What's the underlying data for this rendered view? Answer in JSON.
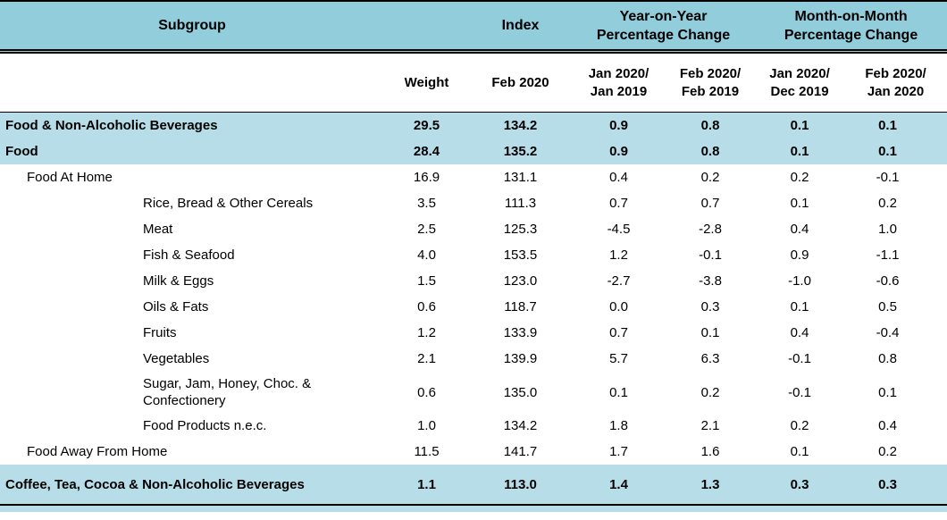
{
  "header": {
    "subgroup": "Subgroup",
    "index": "Index",
    "yoy_change": "Year-on-Year\nPercentage Change",
    "mom_change": "Month-on-Month\nPercentage Change",
    "weight": "Weight",
    "index_period": "Feb 2020",
    "yoy_periods": [
      "Jan 2020/\nJan 2019",
      "Feb 2020/\nFeb 2019"
    ],
    "mom_periods": [
      "Jan 2020/\nDec 2019",
      "Feb 2020/\nJan 2020"
    ]
  },
  "colors": {
    "header_bg": "#92CDDC",
    "highlight_bg": "#B7DEE8",
    "rule": "#000000"
  },
  "rows": [
    {
      "subgroup": "Food & Non-Alcoholic Beverages",
      "indent": 0,
      "highlight": true,
      "weight": "29.5",
      "index": "134.2",
      "yoy_jan": "0.9",
      "yoy_feb": "0.8",
      "mom_jan": "0.1",
      "mom_feb": "0.1"
    },
    {
      "subgroup": "Food",
      "indent": 0,
      "highlight": true,
      "weight": "28.4",
      "index": "135.2",
      "yoy_jan": "0.9",
      "yoy_feb": "0.8",
      "mom_jan": "0.1",
      "mom_feb": "0.1"
    },
    {
      "subgroup": "Food At Home",
      "indent": 1,
      "highlight": false,
      "weight": "16.9",
      "index": "131.1",
      "yoy_jan": "0.4",
      "yoy_feb": "0.2",
      "mom_jan": "0.2",
      "mom_feb": "-0.1"
    },
    {
      "subgroup": "Rice, Bread & Other Cereals",
      "indent": 2,
      "highlight": false,
      "weight": "3.5",
      "index": "111.3",
      "yoy_jan": "0.7",
      "yoy_feb": "0.7",
      "mom_jan": "0.1",
      "mom_feb": "0.2"
    },
    {
      "subgroup": "Meat",
      "indent": 2,
      "highlight": false,
      "weight": "2.5",
      "index": "125.3",
      "yoy_jan": "-4.5",
      "yoy_feb": "-2.8",
      "mom_jan": "0.4",
      "mom_feb": "1.0"
    },
    {
      "subgroup": "Fish & Seafood",
      "indent": 2,
      "highlight": false,
      "weight": "4.0",
      "index": "153.5",
      "yoy_jan": "1.2",
      "yoy_feb": "-0.1",
      "mom_jan": "0.9",
      "mom_feb": "-1.1"
    },
    {
      "subgroup": "Milk & Eggs",
      "indent": 2,
      "highlight": false,
      "weight": "1.5",
      "index": "123.0",
      "yoy_jan": "-2.7",
      "yoy_feb": "-3.8",
      "mom_jan": "-1.0",
      "mom_feb": "-0.6"
    },
    {
      "subgroup": "Oils & Fats",
      "indent": 2,
      "highlight": false,
      "weight": "0.6",
      "index": "118.7",
      "yoy_jan": "0.0",
      "yoy_feb": "0.3",
      "mom_jan": "0.1",
      "mom_feb": "0.5"
    },
    {
      "subgroup": "Fruits",
      "indent": 2,
      "highlight": false,
      "weight": "1.2",
      "index": "133.9",
      "yoy_jan": "0.7",
      "yoy_feb": "0.1",
      "mom_jan": "0.4",
      "mom_feb": "-0.4"
    },
    {
      "subgroup": "Vegetables",
      "indent": 2,
      "highlight": false,
      "weight": "2.1",
      "index": "139.9",
      "yoy_jan": "5.7",
      "yoy_feb": "6.3",
      "mom_jan": "-0.1",
      "mom_feb": "0.8"
    },
    {
      "subgroup": "Sugar, Jam, Honey, Choc. & Confectionery",
      "indent": 2,
      "highlight": false,
      "weight": "0.6",
      "index": "135.0",
      "yoy_jan": "0.1",
      "yoy_feb": "0.2",
      "mom_jan": "-0.1",
      "mom_feb": "0.1"
    },
    {
      "subgroup": "Food Products n.e.c.",
      "indent": 2,
      "highlight": false,
      "weight": "1.0",
      "index": "134.2",
      "yoy_jan": "1.8",
      "yoy_feb": "2.1",
      "mom_jan": "0.2",
      "mom_feb": "0.4"
    },
    {
      "subgroup": "Food Away From Home",
      "indent": 1,
      "highlight": false,
      "weight": "11.5",
      "index": "141.7",
      "yoy_jan": "1.7",
      "yoy_feb": "1.6",
      "mom_jan": "0.1",
      "mom_feb": "0.2"
    },
    {
      "subgroup": "Coffee, Tea, Cocoa & Non-Alcoholic Beverages",
      "indent": 0,
      "highlight": true,
      "weight": "1.1",
      "index": "113.0",
      "yoy_jan": "1.4",
      "yoy_feb": "1.3",
      "mom_jan": "0.3",
      "mom_feb": "0.3"
    }
  ]
}
